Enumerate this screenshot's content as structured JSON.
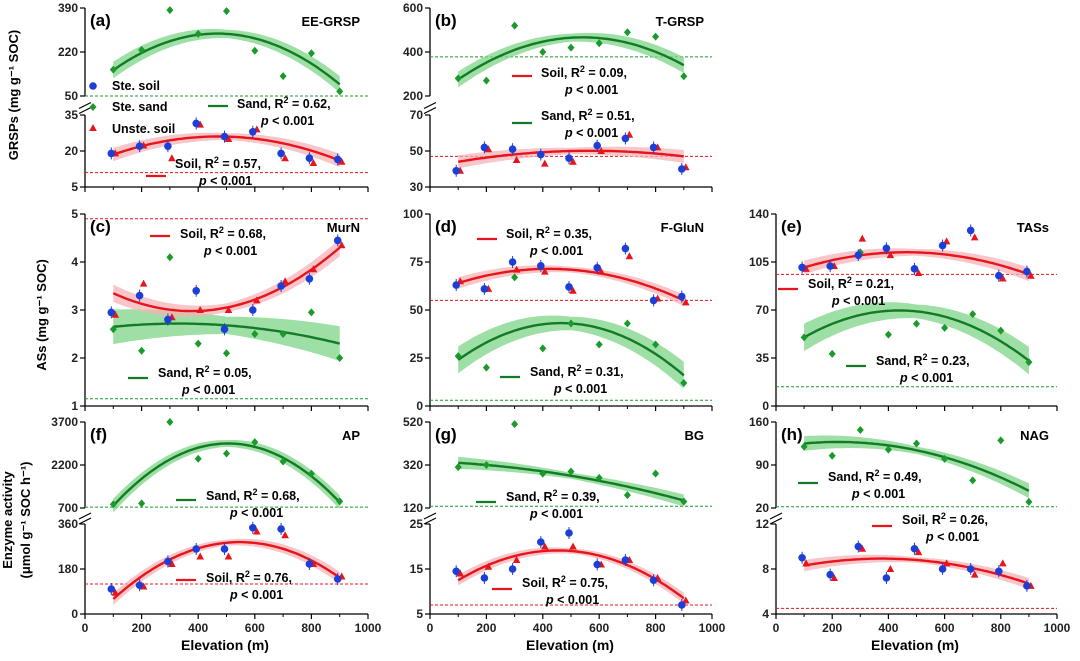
{
  "chart_data": {
    "type": "scatter",
    "x": [
      100,
      200,
      300,
      400,
      500,
      600,
      700,
      800,
      900
    ],
    "x_ticks": [
      "0",
      "200",
      "400",
      "600",
      "800",
      "1000"
    ],
    "xlabel": "Elevation (m)",
    "row_labels": {
      "grsp": "GRSPs (mg g⁻¹ SOC)",
      "as": "ASs (mg g⁻¹ SOC)",
      "enz1": "Enzyme activity",
      "enz2": "(μmol g⁻¹ SOC h⁻¹)"
    },
    "colors": {
      "soil": "#e8141c",
      "sand": "#1a9a2a",
      "stesoil": "#1d3fd6",
      "fit_soil": "#e8141c",
      "fit_sand": "#137a25",
      "band_soil": "#f6b3b7",
      "band_sand": "#7cd486"
    },
    "legend": {
      "ste_soil": "Ste. soil",
      "ste_sand": "Ste. sand",
      "unste_soil": "Unste. soil"
    },
    "panels": [
      {
        "id": "a",
        "label": "(a)",
        "title": "EE-GRSP",
        "upper_ticks": [
          "50",
          "220",
          "390"
        ],
        "lower_ticks": [
          "5",
          "20",
          "35"
        ],
        "upper_range": [
          50,
          390
        ],
        "lower_range": [
          5,
          35
        ],
        "sand": [
          [
            100,
            152
          ],
          [
            200,
            228
          ],
          [
            300,
            382
          ],
          [
            400,
            290
          ],
          [
            500,
            378
          ],
          [
            600,
            225
          ],
          [
            700,
            127
          ],
          [
            800,
            215
          ],
          [
            900,
            68
          ]
        ],
        "soil": [
          [
            100,
            19
          ],
          [
            200,
            22.3
          ],
          [
            300,
            17
          ],
          [
            400,
            31
          ],
          [
            500,
            25
          ],
          [
            600,
            29
          ],
          [
            700,
            17
          ],
          [
            800,
            15
          ],
          [
            900,
            15.5
          ]
        ],
        "stesoil": [
          [
            100,
            19
          ],
          [
            200,
            22
          ],
          [
            300,
            22
          ],
          [
            400,
            31.5
          ],
          [
            500,
            26
          ],
          [
            600,
            28
          ],
          [
            700,
            19
          ],
          [
            800,
            17
          ],
          [
            900,
            16.5
          ]
        ],
        "fit_sand": {
          "peak": 288,
          "edge": 155,
          "right": 100,
          "half_band": 18
        },
        "fit_soil": {
          "peak": 26,
          "left": 18.5,
          "right": 16,
          "half_band": 1.5
        },
        "ref_sand": 50,
        "ref_soil": 11,
        "ann_sand": {
          "name": "Sand, R",
          "r2": "= 0.62,",
          "p": "< 0.001"
        },
        "ann_soil": {
          "name": "Soil, R",
          "r2": "= 0.57,",
          "p": "< 0.001"
        }
      },
      {
        "id": "b",
        "label": "(b)",
        "title": "T-GRSP",
        "upper_ticks": [
          "200",
          "400",
          "600"
        ],
        "lower_ticks": [
          "30",
          "50",
          "70"
        ],
        "upper_range": [
          200,
          600
        ],
        "lower_range": [
          30,
          70
        ],
        "sand": [
          [
            100,
            280
          ],
          [
            200,
            270
          ],
          [
            300,
            520
          ],
          [
            400,
            400
          ],
          [
            500,
            420
          ],
          [
            600,
            440
          ],
          [
            700,
            490
          ],
          [
            800,
            470
          ],
          [
            900,
            290
          ]
        ],
        "soil": [
          [
            100,
            39
          ],
          [
            200,
            51
          ],
          [
            300,
            45
          ],
          [
            400,
            43
          ],
          [
            500,
            44
          ],
          [
            600,
            50
          ],
          [
            700,
            59
          ],
          [
            800,
            52
          ],
          [
            900,
            41
          ]
        ],
        "stesoil": [
          [
            100,
            39
          ],
          [
            200,
            52
          ],
          [
            300,
            51
          ],
          [
            400,
            48
          ],
          [
            500,
            46
          ],
          [
            600,
            53
          ],
          [
            700,
            57
          ],
          [
            800,
            52
          ],
          [
            900,
            40
          ]
        ],
        "fit_sand": {
          "peak": 465,
          "left": 275,
          "right": 340,
          "half_band": 20
        },
        "fit_soil": {
          "peak": 50,
          "left": 44,
          "right": 47,
          "half_band": 2
        },
        "ref_sand": 378,
        "ref_soil": 47,
        "ann_soil": {
          "name": "Soil, R",
          "r2": "= 0.09,",
          "p": "< 0.001"
        },
        "ann_sand": {
          "name": "Sand, R",
          "r2": "= 0.51,",
          "p": "< 0.001"
        }
      },
      {
        "id": "c",
        "label": "(c)",
        "title": "MurN",
        "ticks": [
          "1",
          "2",
          "3",
          "4",
          "5"
        ],
        "range": [
          1,
          5
        ],
        "sand": [
          [
            100,
            2.6
          ],
          [
            200,
            2.15
          ],
          [
            300,
            4.1
          ],
          [
            400,
            2.3
          ],
          [
            500,
            2.1
          ],
          [
            600,
            2.5
          ],
          [
            700,
            2.5
          ],
          [
            800,
            2.95
          ],
          [
            900,
            2.0
          ]
        ],
        "soil": [
          [
            100,
            2.9
          ],
          [
            200,
            3.55
          ],
          [
            300,
            2.85
          ],
          [
            400,
            3.0
          ],
          [
            500,
            3.0
          ],
          [
            600,
            3.2
          ],
          [
            700,
            3.6
          ],
          [
            800,
            3.85
          ],
          [
            900,
            4.35
          ]
        ],
        "stesoil": [
          [
            100,
            2.95
          ],
          [
            200,
            3.3
          ],
          [
            300,
            2.8
          ],
          [
            400,
            3.4
          ],
          [
            500,
            2.6
          ],
          [
            600,
            3.0
          ],
          [
            700,
            3.5
          ],
          [
            800,
            3.65
          ],
          [
            900,
            4.45
          ]
        ],
        "ref_soil": 4.9,
        "ref_sand": 1.15,
        "ann_soil": {
          "name": "Soil, R",
          "r2": "= 0.68,",
          "p": "< 0.001"
        },
        "ann_sand": {
          "name": "Sand, R",
          "r2": "= 0.05,",
          "p": "< 0.001"
        }
      },
      {
        "id": "d",
        "label": "(d)",
        "title": "F-GluN",
        "ticks": [
          "0",
          "25",
          "50",
          "75",
          "100"
        ],
        "range": [
          0,
          100
        ],
        "sand": [
          [
            100,
            26
          ],
          [
            200,
            20
          ],
          [
            300,
            67
          ],
          [
            400,
            30
          ],
          [
            500,
            43
          ],
          [
            600,
            32
          ],
          [
            700,
            43
          ],
          [
            800,
            32
          ],
          [
            900,
            12
          ]
        ],
        "soil": [
          [
            100,
            65
          ],
          [
            200,
            61
          ],
          [
            300,
            71
          ],
          [
            400,
            70
          ],
          [
            500,
            60
          ],
          [
            600,
            70
          ],
          [
            700,
            78
          ],
          [
            800,
            56
          ],
          [
            900,
            54
          ]
        ],
        "stesoil": [
          [
            100,
            63
          ],
          [
            200,
            61
          ],
          [
            300,
            75
          ],
          [
            400,
            73
          ],
          [
            500,
            62
          ],
          [
            600,
            72
          ],
          [
            700,
            82
          ],
          [
            800,
            55
          ],
          [
            900,
            57
          ]
        ],
        "ref_soil": 55,
        "ref_sand": 3,
        "ann_soil": {
          "name": "Soil, R",
          "r2": "= 0.35,",
          "p": "< 0.001"
        },
        "ann_sand": {
          "name": "Sand, R",
          "r2": "= 0.31,",
          "p": "< 0.001"
        }
      },
      {
        "id": "e",
        "label": "(e)",
        "title": "TASs",
        "ticks": [
          "0",
          "35",
          "70",
          "105",
          "140"
        ],
        "range": [
          0,
          140
        ],
        "sand": [
          [
            100,
            50
          ],
          [
            200,
            38
          ],
          [
            300,
            112
          ],
          [
            400,
            52
          ],
          [
            500,
            60
          ],
          [
            600,
            57
          ],
          [
            700,
            67
          ],
          [
            800,
            55
          ],
          [
            900,
            32
          ]
        ],
        "soil": [
          [
            100,
            100
          ],
          [
            200,
            102
          ],
          [
            300,
            122
          ],
          [
            400,
            110
          ],
          [
            500,
            97
          ],
          [
            600,
            120
          ],
          [
            700,
            123
          ],
          [
            800,
            93
          ],
          [
            900,
            95
          ]
        ],
        "stesoil": [
          [
            100,
            101
          ],
          [
            200,
            102
          ],
          [
            300,
            110
          ],
          [
            400,
            115
          ],
          [
            500,
            100
          ],
          [
            600,
            117
          ],
          [
            700,
            128
          ],
          [
            800,
            95
          ],
          [
            900,
            98
          ]
        ],
        "ref_soil": 96,
        "ref_sand": 14,
        "ann_soil": {
          "name": "Soil, R",
          "r2": "= 0.21,",
          "p": "< 0.001"
        },
        "ann_sand": {
          "name": "Sand, R",
          "r2": "= 0.23,",
          "p": "< 0.001"
        }
      },
      {
        "id": "f",
        "label": "(f)",
        "title": "AP",
        "upper_ticks": [
          "700",
          "2200",
          "3700"
        ],
        "lower_ticks": [
          "0",
          "180",
          "360"
        ],
        "upper_range": [
          700,
          3700
        ],
        "lower_range": [
          0,
          360
        ],
        "sand": [
          [
            100,
            830
          ],
          [
            200,
            860
          ],
          [
            300,
            3700
          ],
          [
            400,
            2420
          ],
          [
            500,
            2600
          ],
          [
            600,
            3000
          ],
          [
            700,
            2320
          ],
          [
            800,
            1900
          ],
          [
            900,
            930
          ]
        ],
        "soil": [
          [
            100,
            85
          ],
          [
            200,
            110
          ],
          [
            300,
            200
          ],
          [
            400,
            230
          ],
          [
            500,
            230
          ],
          [
            600,
            330
          ],
          [
            700,
            315
          ],
          [
            800,
            200
          ],
          [
            900,
            150
          ]
        ],
        "stesoil": [
          [
            100,
            100
          ],
          [
            200,
            115
          ],
          [
            300,
            210
          ],
          [
            400,
            260
          ],
          [
            500,
            260
          ],
          [
            600,
            345
          ],
          [
            700,
            340
          ],
          [
            800,
            200
          ],
          [
            900,
            140
          ]
        ],
        "ref_sand": 730,
        "ref_soil": 120,
        "ann_sand": {
          "name": "Sand, R",
          "r2": "= 0.68,",
          "p": "< 0.001"
        },
        "ann_soil": {
          "name": "Soil, R",
          "r2": "= 0.76,",
          "p": "< 0.001"
        }
      },
      {
        "id": "g",
        "label": "(g)",
        "title": "BG",
        "upper_ticks": [
          "120",
          "320",
          "520"
        ],
        "lower_ticks": [
          "5",
          "15",
          "25"
        ],
        "upper_range": [
          120,
          520
        ],
        "lower_range": [
          5,
          25
        ],
        "sand": [
          [
            100,
            310
          ],
          [
            200,
            320
          ],
          [
            300,
            510
          ],
          [
            400,
            280
          ],
          [
            500,
            290
          ],
          [
            600,
            260
          ],
          [
            700,
            180
          ],
          [
            800,
            280
          ],
          [
            900,
            150
          ]
        ],
        "soil": [
          [
            100,
            14
          ],
          [
            200,
            15.5
          ],
          [
            300,
            17
          ],
          [
            400,
            20
          ],
          [
            500,
            20
          ],
          [
            600,
            16
          ],
          [
            700,
            17
          ],
          [
            800,
            13
          ],
          [
            900,
            8
          ]
        ],
        "stesoil": [
          [
            100,
            14.5
          ],
          [
            200,
            13
          ],
          [
            300,
            15
          ],
          [
            400,
            21
          ],
          [
            500,
            23
          ],
          [
            600,
            16
          ],
          [
            700,
            17
          ],
          [
            800,
            12.5
          ],
          [
            900,
            7
          ]
        ],
        "ref_sand": 128,
        "ref_soil": 7,
        "ann_sand": {
          "name": "Sand, R",
          "r2": "= 0.39,",
          "p": "< 0.001"
        },
        "ann_soil": {
          "name": "Soil, R",
          "r2": "= 0.75,",
          "p": "< 0.001"
        }
      },
      {
        "id": "h",
        "label": "(h)",
        "title": "NAG",
        "upper_ticks": [
          "20",
          "90",
          "160"
        ],
        "lower_ticks": [
          "4",
          "8",
          "12"
        ],
        "upper_range": [
          20,
          160
        ],
        "lower_range": [
          4,
          12
        ],
        "sand": [
          [
            100,
            120
          ],
          [
            200,
            105
          ],
          [
            300,
            147
          ],
          [
            400,
            115
          ],
          [
            500,
            125
          ],
          [
            600,
            100
          ],
          [
            700,
            65
          ],
          [
            800,
            130
          ],
          [
            900,
            30
          ]
        ],
        "soil": [
          [
            100,
            8.5
          ],
          [
            200,
            7.2
          ],
          [
            300,
            9.8
          ],
          [
            400,
            8
          ],
          [
            500,
            9.5
          ],
          [
            600,
            8.5
          ],
          [
            700,
            7.5
          ],
          [
            800,
            8.5
          ],
          [
            900,
            6.5
          ]
        ],
        "stesoil": [
          [
            100,
            9
          ],
          [
            200,
            7.5
          ],
          [
            300,
            10
          ],
          [
            400,
            7.2
          ],
          [
            500,
            9.8
          ],
          [
            600,
            8
          ],
          [
            700,
            8
          ],
          [
            800,
            7.8
          ],
          [
            900,
            6.5
          ]
        ],
        "ref_sand": 22,
        "ref_soil": 4.5,
        "ann_sand": {
          "name": "Sand, R",
          "r2": "= 0.49,",
          "p": "< 0.001"
        },
        "ann_soil": {
          "name": "Soil, R",
          "r2": "= 0.26,",
          "p": "< 0.001"
        }
      }
    ]
  }
}
